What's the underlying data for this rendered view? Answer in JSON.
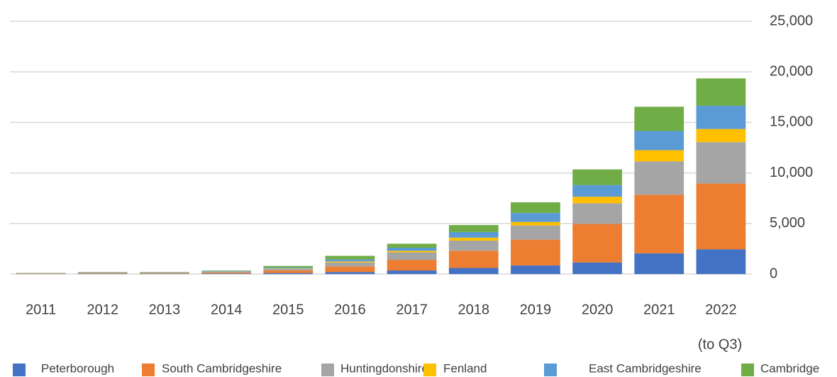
{
  "chart_data": {
    "type": "bar",
    "stacked": true,
    "categories": [
      "2011",
      "2012",
      "2013",
      "2014",
      "2015",
      "2016",
      "2017",
      "2018",
      "2019",
      "2020",
      "2021",
      "2022"
    ],
    "note": "(to Q3)",
    "series": [
      {
        "name": "Peterborough",
        "color": "#4472c4",
        "values": [
          20,
          30,
          30,
          50,
          100,
          200,
          350,
          600,
          850,
          1150,
          2050,
          2450
        ]
      },
      {
        "name": "South Cambridgeshire",
        "color": "#ed7d31",
        "values": [
          40,
          60,
          60,
          100,
          250,
          550,
          1050,
          1700,
          2550,
          3800,
          5800,
          6500
        ]
      },
      {
        "name": "Huntingdonshire",
        "color": "#a5a5a5",
        "values": [
          20,
          40,
          40,
          80,
          150,
          400,
          750,
          1000,
          1400,
          2050,
          3300,
          4100
        ]
      },
      {
        "name": "Fenland",
        "color": "#ffc000",
        "values": [
          5,
          10,
          10,
          20,
          50,
          100,
          150,
          300,
          350,
          650,
          1100,
          1300
        ]
      },
      {
        "name": "East Cambridgeshire",
        "color": "#5b9bd5",
        "values": [
          15,
          30,
          30,
          60,
          100,
          200,
          300,
          550,
          900,
          1150,
          1900,
          2300
        ]
      },
      {
        "name": "Cambridge",
        "color": "#70ad47",
        "values": [
          20,
          30,
          30,
          40,
          150,
          350,
          400,
          700,
          1050,
          1550,
          2400,
          2700
        ]
      }
    ],
    "ylim": [
      0,
      25000
    ],
    "yticks": [
      0,
      {
        "value": 5000,
        "label": "5,000"
      },
      {
        "value": 10000,
        "label": "10,000"
      },
      {
        "value": 15000,
        "label": "15,000"
      },
      {
        "value": 20000,
        "label": "20,000"
      },
      {
        "value": 25000,
        "label": "25,000"
      }
    ],
    "grid": true,
    "legend": "bottom"
  }
}
